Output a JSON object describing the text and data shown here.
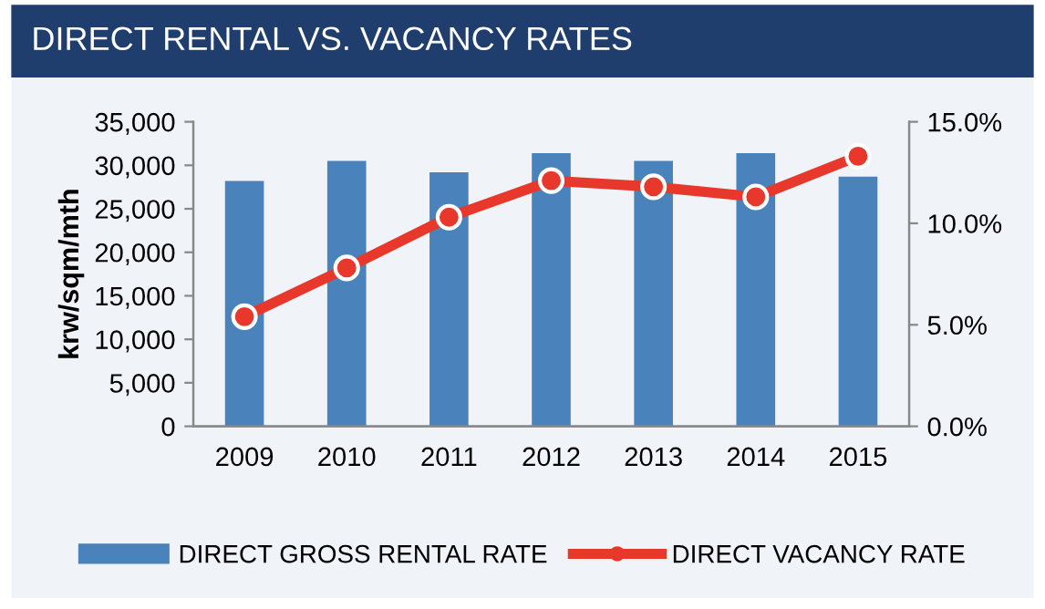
{
  "chart_data": {
    "type": "bar",
    "title": "DIRECT RENTAL VS. VACANCY RATES",
    "ylabel": "krw/sqm/mth",
    "categories": [
      "2009",
      "2010",
      "2011",
      "2012",
      "2013",
      "2014",
      "2015"
    ],
    "series": [
      {
        "name": "DIRECT GROSS RENTAL RATE",
        "color": "#4a82bb",
        "values": [
          28200,
          30500,
          29200,
          31400,
          30500,
          31400,
          28700
        ]
      },
      {
        "name": "DIRECT VACANCY RATE",
        "type": "line",
        "axis": "y2",
        "color": "#e8382c",
        "marker": "circle",
        "values": [
          5.4,
          7.8,
          10.3,
          12.1,
          11.8,
          11.3,
          13.3
        ]
      }
    ],
    "ylim": [
      0,
      35000
    ],
    "yticks": [
      {
        "value": 0,
        "label": "0"
      },
      {
        "value": 5000,
        "label": "5,000"
      },
      {
        "value": 10000,
        "label": "10,000"
      },
      {
        "value": 15000,
        "label": "15,000"
      },
      {
        "value": 20000,
        "label": "20,000"
      },
      {
        "value": 25000,
        "label": "25,000"
      },
      {
        "value": 30000,
        "label": "30,000"
      },
      {
        "value": 35000,
        "label": "35,000"
      }
    ],
    "y2lim": [
      0,
      15
    ],
    "y2ticks": [
      {
        "value": 0,
        "label": "0.0%"
      },
      {
        "value": 5,
        "label": "5.0%"
      },
      {
        "value": 10,
        "label": "10.0%"
      },
      {
        "value": 15,
        "label": "15.0%"
      }
    ],
    "grid": false,
    "legend": "bottom"
  }
}
